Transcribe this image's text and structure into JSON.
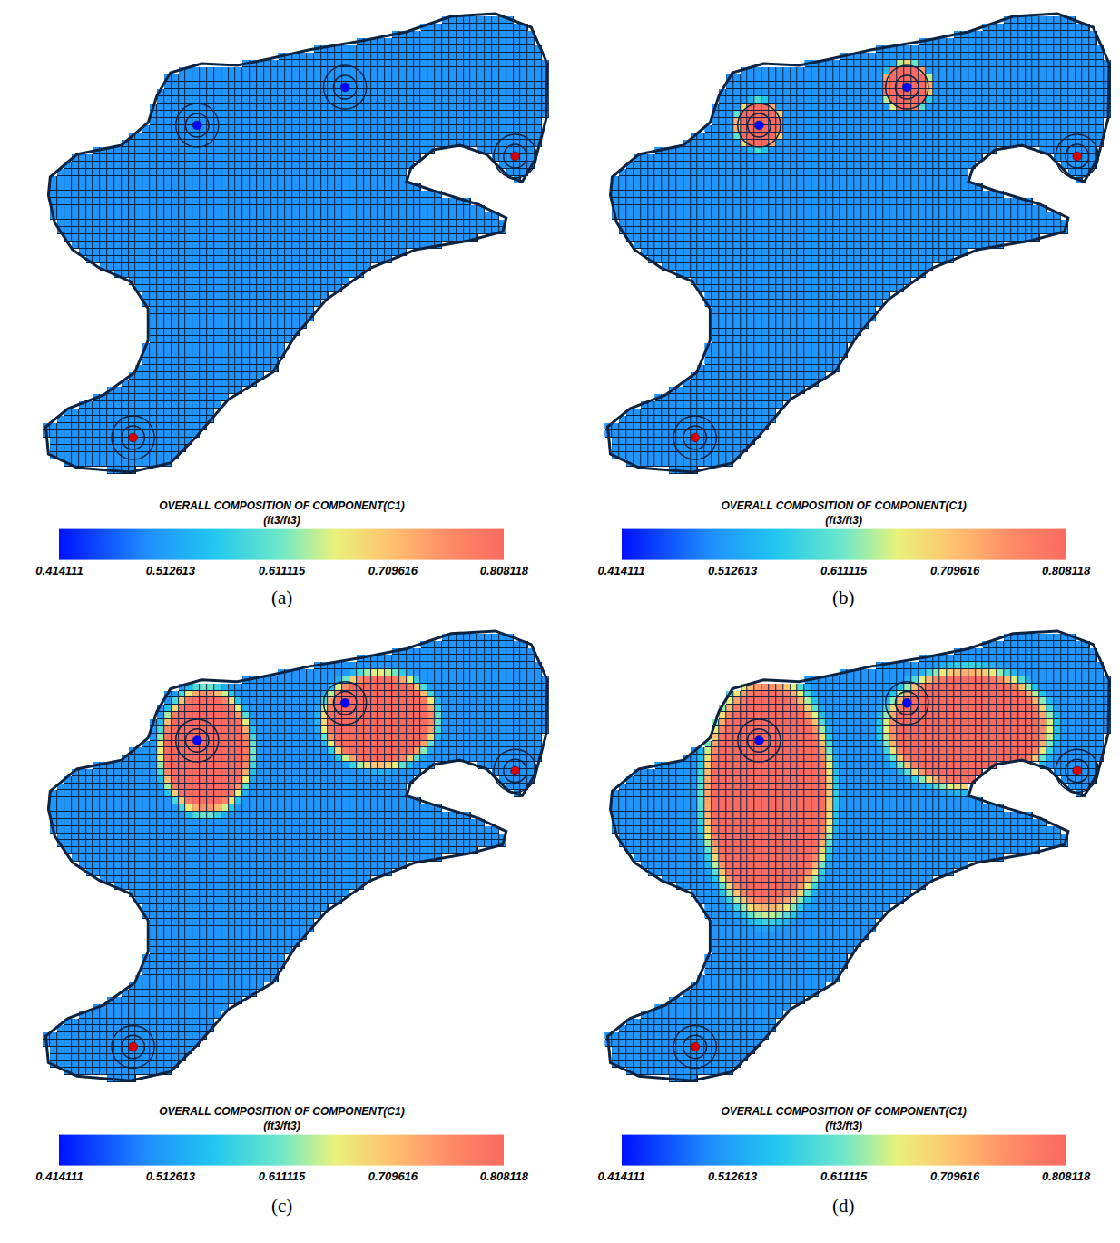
{
  "chart_data": [
    {
      "type": "heatmap",
      "label": "(a)",
      "colorbar": {
        "title": "OVERALL COMPOSITION OF COMPONENT(C1)",
        "units": "(ft3/ft3)",
        "range": [
          0.414111,
          0.808118
        ],
        "ticks": [
          0.414111,
          0.512613,
          0.611115,
          0.709616,
          0.808118
        ]
      },
      "xlim": [
        0,
        600
      ],
      "ylim": [
        0,
        520
      ],
      "tick_labels": false,
      "background": 0.5,
      "plumes": [],
      "wells": [
        {
          "x": 205,
          "y": 392,
          "color": "#0000ff"
        },
        {
          "x": 371,
          "y": 434,
          "color": "#0000ff"
        },
        {
          "x": 562,
          "y": 358,
          "color": "#d80000"
        },
        {
          "x": 133,
          "y": 48,
          "color": "#d80000"
        }
      ]
    },
    {
      "type": "heatmap",
      "label": "(b)",
      "colorbar": {
        "title": "OVERALL COMPOSITION OF COMPONENT(C1)",
        "units": "(ft3/ft3)",
        "range": [
          0.414111,
          0.808118
        ],
        "ticks": [
          0.414111,
          0.512613,
          0.611115,
          0.709616,
          0.808118
        ]
      },
      "xlim": [
        0,
        600
      ],
      "ylim": [
        0,
        520
      ],
      "tick_labels": false,
      "background": 0.5,
      "plumes": [
        {
          "x": 205,
          "y": 392,
          "rx": 26,
          "ry": 26,
          "value": 0.808118
        },
        {
          "x": 371,
          "y": 434,
          "rx": 26,
          "ry": 26,
          "value": 0.808118
        }
      ],
      "wells": [
        {
          "x": 205,
          "y": 392,
          "color": "#0000ff"
        },
        {
          "x": 371,
          "y": 434,
          "color": "#0000ff"
        },
        {
          "x": 562,
          "y": 358,
          "color": "#d80000"
        },
        {
          "x": 133,
          "y": 48,
          "color": "#d80000"
        }
      ]
    },
    {
      "type": "heatmap",
      "label": "(c)",
      "colorbar": {
        "title": "OVERALL COMPOSITION OF COMPONENT(C1)",
        "units": "(ft3/ft3)",
        "range": [
          0.414111,
          0.808118
        ],
        "ticks": [
          0.414111,
          0.512613,
          0.611115,
          0.709616,
          0.808118
        ]
      },
      "xlim": [
        0,
        600
      ],
      "ylim": [
        0,
        520
      ],
      "tick_labels": false,
      "background": 0.5,
      "plumes": [
        {
          "x": 215,
          "y": 380,
          "rx": 50,
          "ry": 68,
          "value": 0.808118
        },
        {
          "x": 410,
          "y": 415,
          "rx": 62,
          "ry": 52,
          "value": 0.808118
        }
      ],
      "wells": [
        {
          "x": 205,
          "y": 392,
          "color": "#0000ff"
        },
        {
          "x": 371,
          "y": 434,
          "color": "#0000ff"
        },
        {
          "x": 562,
          "y": 358,
          "color": "#d80000"
        },
        {
          "x": 133,
          "y": 48,
          "color": "#d80000"
        }
      ]
    },
    {
      "type": "heatmap",
      "label": "(d)",
      "colorbar": {
        "title": "OVERALL COMPOSITION OF COMPONENT(C1)",
        "units": "(ft3/ft3)",
        "range": [
          0.414111,
          0.808118
        ],
        "ticks": [
          0.414111,
          0.512613,
          0.611115,
          0.709616,
          0.808118
        ]
      },
      "xlim": [
        0,
        600
      ],
      "ylim": [
        0,
        520
      ],
      "tick_labels": false,
      "background": 0.5,
      "plumes": [
        {
          "x": 215,
          "y": 330,
          "rx": 70,
          "ry": 130,
          "value": 0.808118
        },
        {
          "x": 440,
          "y": 405,
          "rx": 90,
          "ry": 65,
          "value": 0.808118
        }
      ],
      "wells": [
        {
          "x": 205,
          "y": 392,
          "color": "#0000ff"
        },
        {
          "x": 371,
          "y": 434,
          "color": "#0000ff"
        },
        {
          "x": 562,
          "y": 358,
          "color": "#d80000"
        },
        {
          "x": 133,
          "y": 48,
          "color": "#d80000"
        }
      ]
    }
  ]
}
